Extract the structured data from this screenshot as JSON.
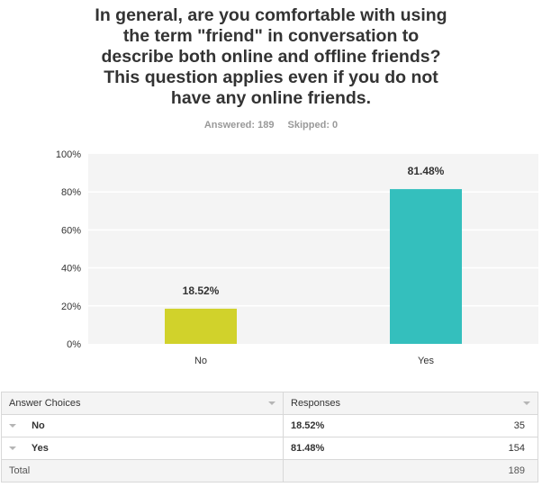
{
  "question": {
    "lines": [
      "In general, are you comfortable with using",
      "the term \"friend\" in conversation to",
      "describe both online and offline friends?",
      "This question applies even if you do not",
      "have any online friends."
    ]
  },
  "stats": {
    "answered": "Answered: 189",
    "skipped": "Skipped: 0"
  },
  "colors": {
    "no": "#d1d22b",
    "yes": "#34bfbd",
    "plot_bg": "#f4f4f4",
    "grid": "#ffffff"
  },
  "chart_data": {
    "type": "bar",
    "categories": [
      "No",
      "Yes"
    ],
    "values": [
      18.52,
      81.48
    ],
    "data_labels": [
      "18.52%",
      "81.48%"
    ],
    "ylim": [
      0,
      100
    ],
    "yticks": [
      "0%",
      "20%",
      "40%",
      "60%",
      "80%",
      "100%"
    ],
    "grid": true,
    "legend": "none"
  },
  "table": {
    "headers": [
      "Answer Choices",
      "Responses"
    ],
    "rows": [
      {
        "choice": "No",
        "percent": "18.52%",
        "count": "35"
      },
      {
        "choice": "Yes",
        "percent": "81.48%",
        "count": "154"
      }
    ],
    "total_label": "Total",
    "total_count": "189"
  }
}
